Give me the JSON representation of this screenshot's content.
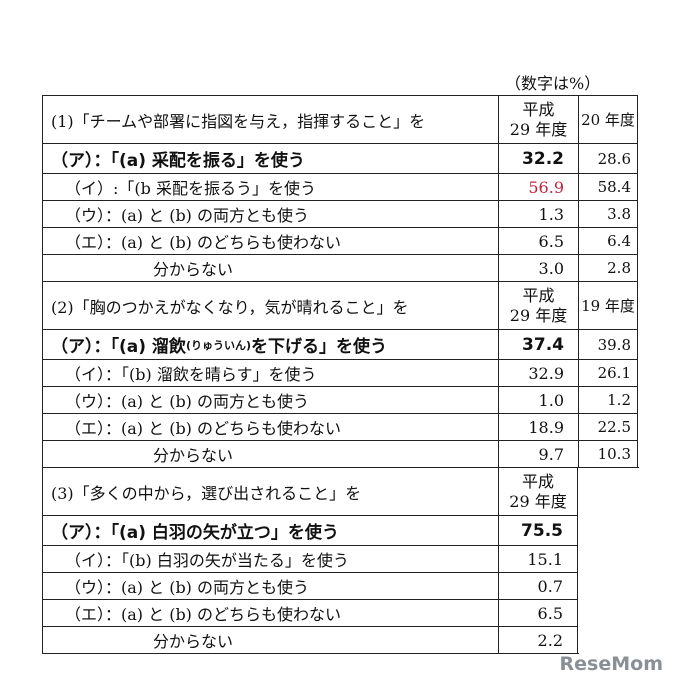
{
  "unit_note": "（数字は%）",
  "sections": [
    {
      "heading": "(1)「チームや部署に指図を与え，指揮すること」を",
      "col_current": [
        "平成",
        "29 年度"
      ],
      "col_prev": "20 年度",
      "rows": [
        {
          "label": "（ア）：「(a) 采配を振る」を使う",
          "value": "32.2",
          "prev": "28.6",
          "style": "bold"
        },
        {
          "label": "（イ）:「(b 采配を振るう」を使う",
          "value": "56.9",
          "prev": "58.4",
          "style": "sub",
          "highlight": true
        },
        {
          "label": "（ウ）：(a) と (b) の両方とも使う",
          "value": "1.3",
          "prev": "3.8",
          "style": "sub"
        },
        {
          "label": "（エ）：(a) と (b) のどちらも使わない",
          "value": "6.5",
          "prev": "6.4",
          "style": "sub"
        },
        {
          "label": "分からない",
          "value": "3.0",
          "prev": "2.8",
          "style": "dk"
        }
      ]
    },
    {
      "heading": "(2)「胸のつかえがなくなり，気が晴れること」を",
      "col_current": [
        "平成",
        "29 年度"
      ],
      "col_prev": "19 年度",
      "rows": [
        {
          "label_pre": "（ア）：「(a) 溜飲",
          "label_ruby": "(りゅういん)",
          "label_post": "を下げる」を使う",
          "value": "37.4",
          "prev": "39.8",
          "style": "bold"
        },
        {
          "label": "（イ）：「(b) 溜飲を晴らす」を使う",
          "value": "32.9",
          "prev": "26.1",
          "style": "sub"
        },
        {
          "label": "（ウ）：(a) と (b) の両方とも使う",
          "value": "1.0",
          "prev": "1.2",
          "style": "sub"
        },
        {
          "label": "（エ）：(a) と (b) のどちらも使わない",
          "value": "18.9",
          "prev": "22.5",
          "style": "sub"
        },
        {
          "label": "分からない",
          "value": "9.7",
          "prev": "10.3",
          "style": "dk"
        }
      ]
    },
    {
      "heading": "(3)「多くの中から，選び出されること」を",
      "col_current": [
        "平成",
        "29 年度"
      ],
      "rows": [
        {
          "label": "（ア）：「(a) 白羽の矢が立つ」を使う",
          "value": "75.5",
          "style": "bold"
        },
        {
          "label": "（イ）：「(b) 白羽の矢が当たる」を使う",
          "value": "15.1",
          "style": "sub"
        },
        {
          "label": "（ウ）：(a) と (b) の両方とも使う",
          "value": "0.7",
          "style": "sub"
        },
        {
          "label": "（エ）：(a) と (b) のどちらも使わない",
          "value": "6.5",
          "style": "sub"
        },
        {
          "label": "分からない",
          "value": "2.2",
          "style": "dk"
        }
      ]
    }
  ],
  "watermark": "ReseMom"
}
